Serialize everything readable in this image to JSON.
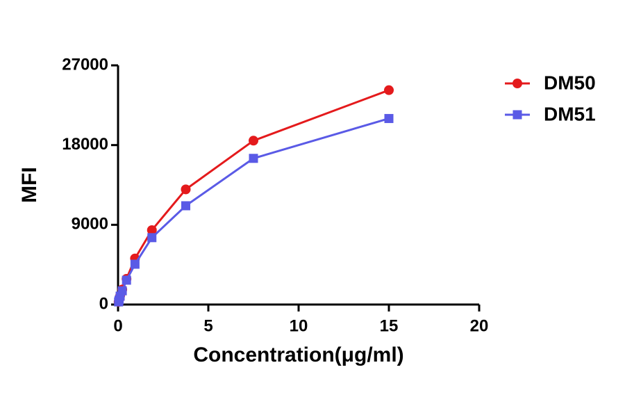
{
  "chart_data": {
    "type": "line",
    "x_label": "Concentration(μg/ml)",
    "y_label": "MFI",
    "x": [
      15,
      7.5,
      3.75,
      1.875,
      0.9375,
      0.469,
      0.234,
      0.117,
      0.0586,
      0.0293
    ],
    "series": [
      {
        "name": "DM50",
        "color": "#e41a1c",
        "marker": "circle",
        "values": [
          24200,
          18500,
          13000,
          8400,
          5200,
          2900,
          1700,
          1000,
          550,
          300
        ]
      },
      {
        "name": "DM51",
        "color": "#5a5ae6",
        "marker": "square",
        "values": [
          21000,
          16500,
          11150,
          7550,
          4550,
          2750,
          1550,
          950,
          500,
          300
        ]
      }
    ],
    "xlim": [
      0,
      20
    ],
    "xticks": [
      0,
      5,
      10,
      15,
      20
    ],
    "ylim": [
      0,
      27000
    ],
    "yticks": [
      0,
      9000,
      18000,
      27000
    ],
    "legend": "top-right"
  }
}
